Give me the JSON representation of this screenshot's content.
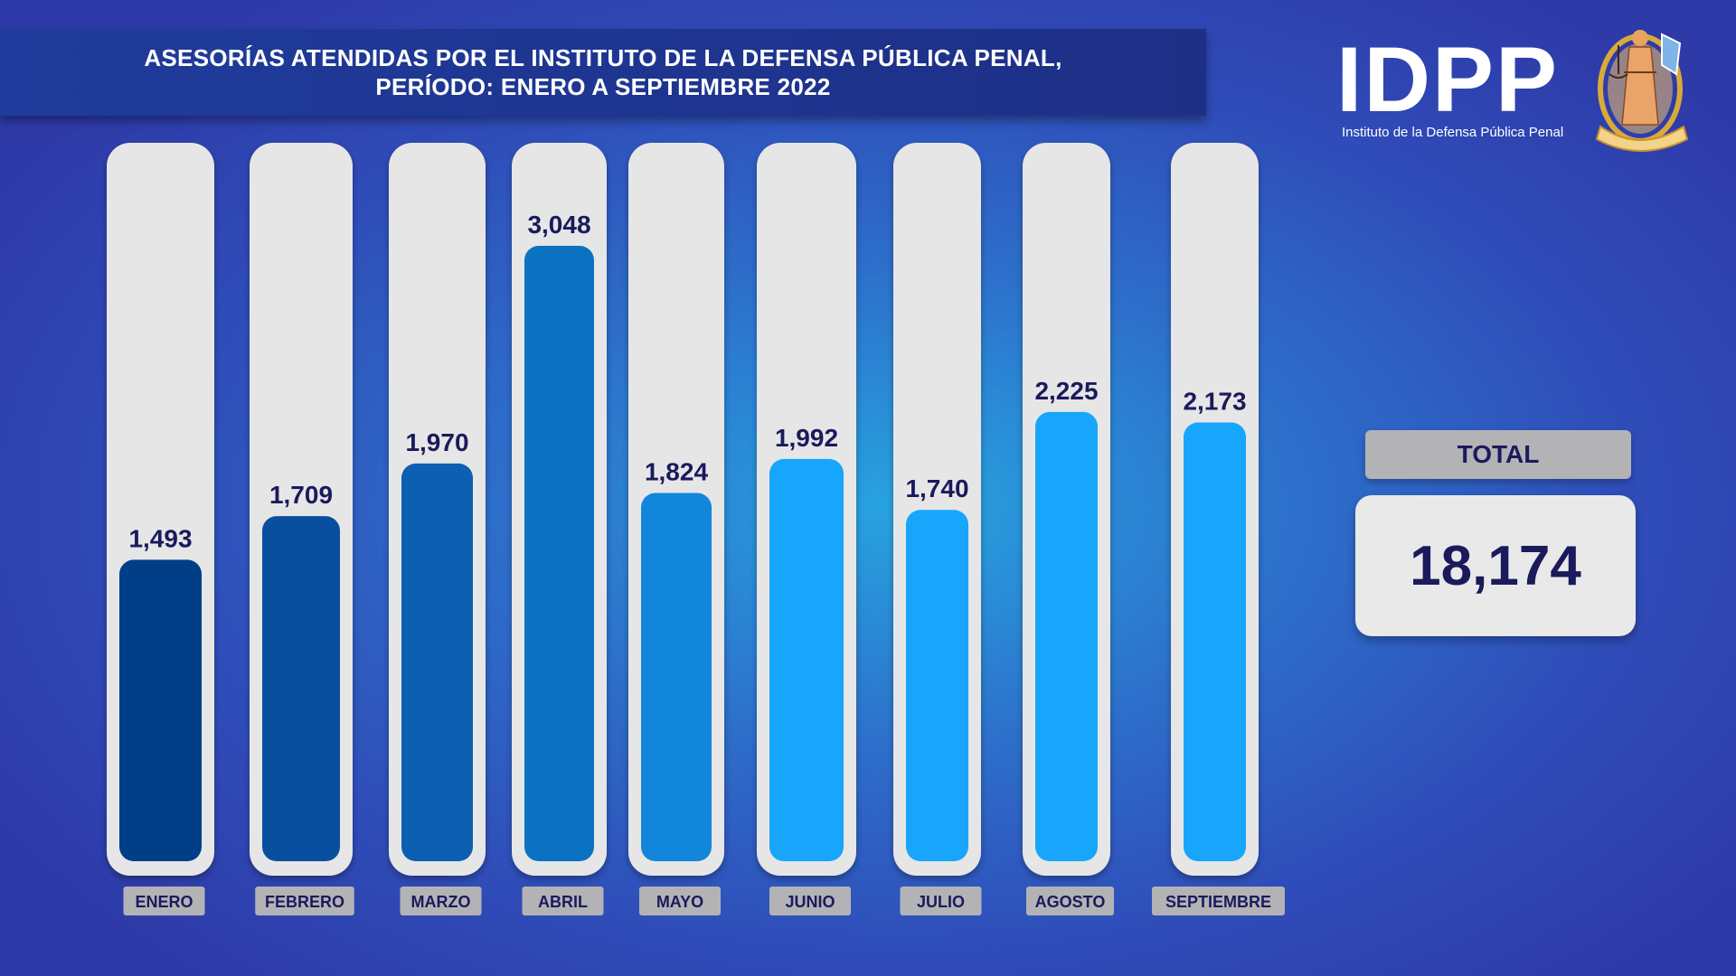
{
  "header": {
    "title_line1": "ASESORÍAS ATENDIDAS POR EL INSTITUTO DE LA DEFENSA PÚBLICA PENAL,",
    "title_line2": "PERÍODO:  ENERO A SEPTIEMBRE 2022"
  },
  "logo": {
    "text": "IDPP",
    "subtitle": "Instituto de la Defensa Pública Penal",
    "emblem_icon": "justice-emblem-icon"
  },
  "total": {
    "label": "TOTAL",
    "value": "18,174"
  },
  "chart_data": {
    "type": "bar",
    "title": "ASESORÍAS ATENDIDAS POR EL INSTITUTO DE LA DEFENSA PÚBLICA PENAL, PERÍODO:  ENERO A SEPTIEMBRE 2022",
    "categories": [
      "ENERO",
      "FEBRERO",
      "MARZO",
      "ABRIL",
      "MAYO",
      "JUNIO",
      "JULIO",
      "AGOSTO",
      "SEPTIEMBRE"
    ],
    "values": [
      1493,
      1709,
      1970,
      3048,
      1824,
      1992,
      1740,
      2225,
      2173
    ],
    "value_labels": [
      "1,493",
      "1,709",
      "1,970",
      "3,048",
      "1,824",
      "1,992",
      "1,740",
      "2,225",
      "2,173"
    ],
    "colors": [
      "#003f88",
      "#084f9f",
      "#0c5fb1",
      "#0b72c2",
      "#1186da",
      "#17a6fb",
      "#17a6fb",
      "#17a6fb",
      "#17a6fb"
    ],
    "track_color": "#e6e6e7",
    "label_box_color": "#b3b3b6",
    "text_color": "#1b1a5c",
    "ylim": [
      0,
      3048
    ],
    "grid": false,
    "legend": "none"
  }
}
